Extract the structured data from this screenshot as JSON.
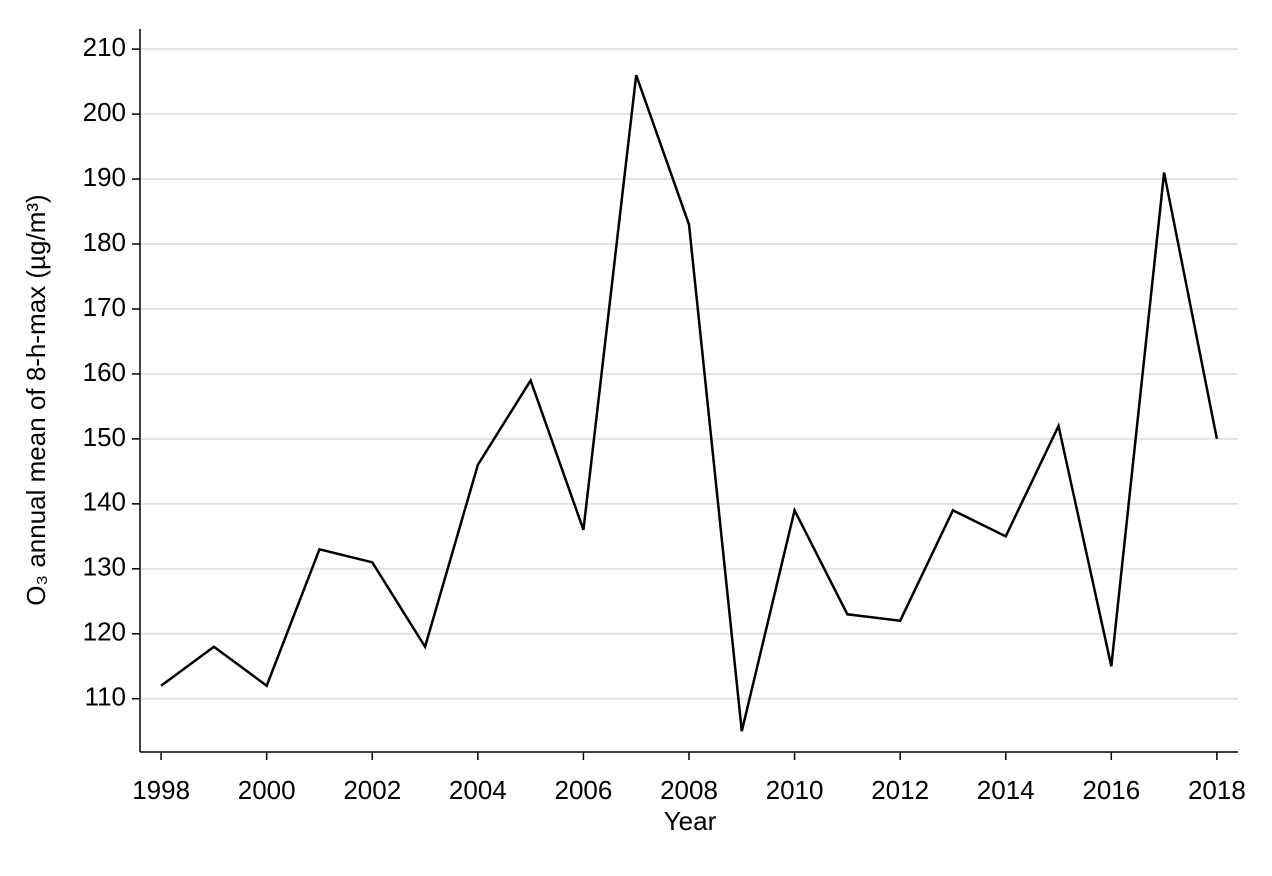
{
  "chart_data": {
    "type": "line",
    "xlabel": "Year",
    "ylabel": "O₃ annual mean of 8-h-max (µg/m³)",
    "x": [
      1998,
      1999,
      2000,
      2001,
      2002,
      2003,
      2004,
      2005,
      2006,
      2007,
      2008,
      2009,
      2010,
      2011,
      2012,
      2013,
      2014,
      2015,
      2016,
      2017,
      2018
    ],
    "series": [
      {
        "color": "#000000",
        "values": [
          112,
          118,
          112,
          133,
          131,
          118,
          146,
          159,
          136,
          206,
          183,
          105,
          139,
          123,
          122,
          139,
          135,
          152,
          115,
          191,
          150
        ]
      }
    ],
    "xlim": [
      1997.6,
      2018.4
    ],
    "xticks": [
      1998,
      2000,
      2002,
      2004,
      2006,
      2008,
      2010,
      2012,
      2014,
      2016,
      2018
    ],
    "ylim": [
      101.8,
      213.1
    ],
    "yticks": [
      110,
      120,
      130,
      140,
      150,
      160,
      170,
      180,
      190,
      200,
      210
    ],
    "grid": true
  }
}
